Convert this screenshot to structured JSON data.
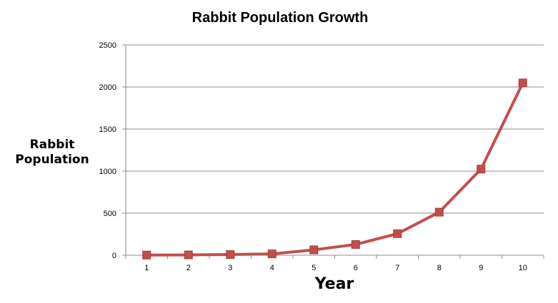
{
  "chart_data": {
    "type": "line",
    "title": "Rabbit Population Growth",
    "xlabel": "Year",
    "ylabel_lines": [
      "Rabbit",
      "Population"
    ],
    "categories": [
      "1",
      "2",
      "3",
      "4",
      "5",
      "6",
      "7",
      "8",
      "9",
      "10"
    ],
    "series": [
      {
        "values": [
          2,
          4,
          8,
          16,
          64,
          128,
          256,
          512,
          1024,
          2048
        ]
      }
    ],
    "ylim": [
      0,
      2500
    ],
    "yticks": [
      "0",
      "500",
      "1000",
      "1500",
      "2000",
      "2500"
    ],
    "grid": true,
    "legend": "none",
    "series_color": "#c0504d"
  }
}
